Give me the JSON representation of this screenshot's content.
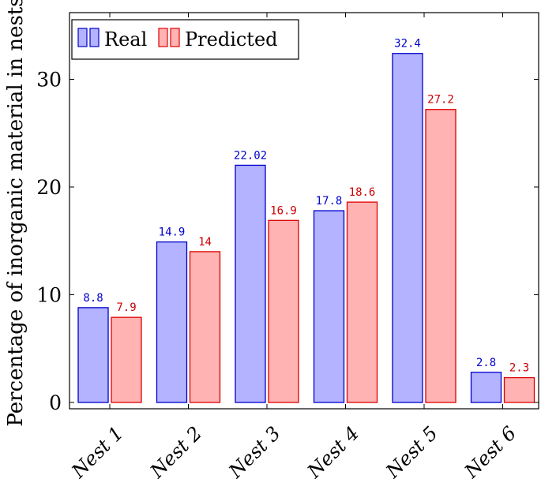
{
  "chart_data": {
    "type": "bar",
    "categories": [
      "Nest 1",
      "Nest 2",
      "Nest 3",
      "Nest 4",
      "Nest 5",
      "Nest 6"
    ],
    "series": [
      {
        "name": "Real",
        "values": [
          8.8,
          14.9,
          22.02,
          17.8,
          32.4,
          2.8
        ],
        "labels": [
          "8.8",
          "14.9",
          "22.02",
          "17.8",
          "32.4",
          "2.8"
        ],
        "fill": "#b3b3ff",
        "stroke": "#0000cc",
        "label_color": "#0000cc"
      },
      {
        "name": "Predicted",
        "values": [
          7.9,
          14,
          16.9,
          18.6,
          27.2,
          2.3
        ],
        "labels": [
          "7.9",
          "14",
          "16.9",
          "18.6",
          "27.2",
          "2.3"
        ],
        "fill": "#ffb3b3",
        "stroke": "#e00000",
        "label_color": "#cc0000"
      }
    ],
    "title": "",
    "xlabel": "",
    "ylabel": "Percentage of inorganic material in nests",
    "ylim": [
      0,
      35.5
    ],
    "yticks": [
      0,
      10,
      20,
      30
    ],
    "grid": false,
    "legend_position": "top-left"
  }
}
